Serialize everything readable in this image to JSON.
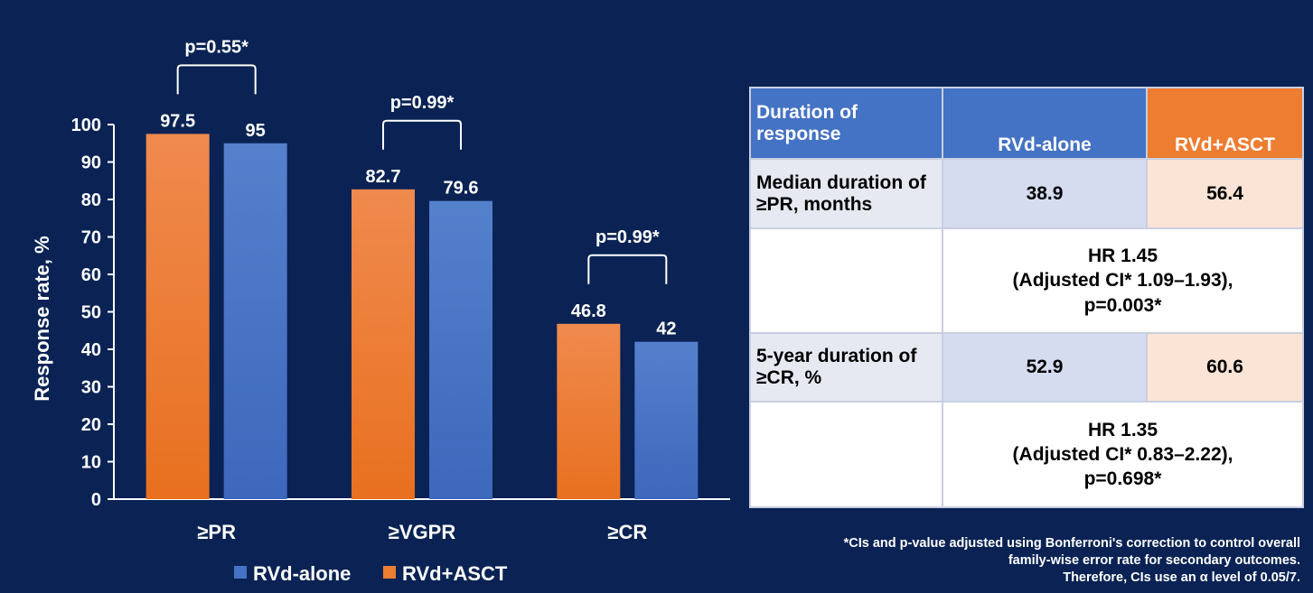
{
  "chart_data": {
    "type": "bar",
    "categories": [
      "≥PR",
      "≥VGPR",
      "≥CR"
    ],
    "series": [
      {
        "name": "RVd+ASCT",
        "values": [
          97.5,
          82.7,
          46.8
        ],
        "color": "#ed7d31"
      },
      {
        "name": "RVd-alone",
        "values": [
          95,
          79.6,
          42
        ],
        "color": "#4472c4"
      }
    ],
    "data_labels": {
      "RVd+ASCT": [
        "97.5",
        "82.7",
        "46.8"
      ],
      "RVd-alone": [
        "95",
        "79.6",
        "42"
      ]
    },
    "ylabel": "Response rate, %",
    "xlabel": "",
    "ylim": [
      0,
      100
    ],
    "yticks": [
      0,
      10,
      20,
      30,
      40,
      50,
      60,
      70,
      80,
      90,
      100
    ],
    "grid": false,
    "legend": {
      "position": "bottom",
      "entries": [
        "RVd-alone",
        "RVd+ASCT"
      ]
    },
    "annotations": [
      "p=0.55*",
      "p=0.99*",
      "p=0.99*"
    ]
  },
  "table": {
    "header": [
      "Duration of response",
      "RVd-alone",
      "RVd+ASCT"
    ],
    "rows": [
      {
        "label": "Median duration of ≥PR, months",
        "rvd_alone": "38.9",
        "rvd_asct": "56.4"
      },
      {
        "hr_line1": "HR 1.45",
        "hr_line2": "(Adjusted CI* 1.09–1.93),",
        "hr_line3": "p=0.003*"
      },
      {
        "label": "5-year duration of ≥CR, %",
        "rvd_alone": "52.9",
        "rvd_asct": "60.6"
      },
      {
        "hr_line1": "HR 1.35",
        "hr_line2": "(Adjusted CI* 0.83–2.22),",
        "hr_line3": "p=0.698*"
      }
    ]
  },
  "footnote": {
    "line1": "*CIs and p-value adjusted using Bonferroni's correction to control overall",
    "line2": "family-wise error rate for secondary outcomes.",
    "line3": "Therefore, CIs use an α level of 0.05/7."
  },
  "colors": {
    "background": "#0a2354",
    "orange": "#ed7d31",
    "blue": "#4472c4"
  }
}
